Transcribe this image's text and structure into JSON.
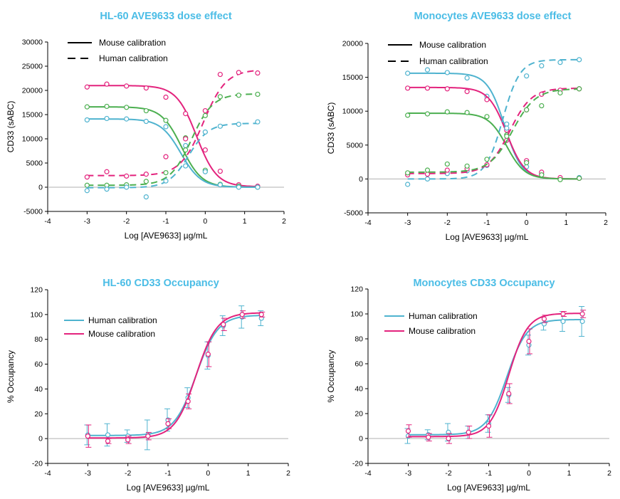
{
  "colors": {
    "title": "#4bbde6",
    "cyan": "#4fb3cf",
    "magenta": "#e3237d",
    "green": "#4caf50",
    "axis": "#000000"
  },
  "charts": [
    {
      "type": "line",
      "title": "HL-60 AVE9633 dose effect",
      "xlabel": "Log [AVE9633] µg/mL",
      "ylabel": "CD33 (sABC)",
      "xlim": [
        -4,
        2
      ],
      "ylim": [
        -5000,
        30000
      ],
      "xticks": [
        "-4",
        "-3",
        "-2",
        "-1",
        "0",
        "1",
        "2"
      ],
      "yticks": [
        "-5000",
        "0",
        "5000",
        "10000",
        "15000",
        "20000",
        "25000",
        "30000"
      ],
      "legend": [
        {
          "label": "Mouse calibration",
          "style": "solid"
        },
        {
          "label": "Human calibration",
          "style": "dashed"
        }
      ],
      "x": [
        -3,
        -2.5,
        -2,
        -1.5,
        -1,
        -0.5,
        0,
        0.38,
        0.85,
        1.33
      ],
      "series": [
        {
          "color": "magenta",
          "style": "solid",
          "points": [
            20700,
            21300,
            20900,
            20500,
            18600,
            15200,
            7700,
            3300,
            500,
            200
          ],
          "fit": {
            "bottom": 100,
            "top": 21000,
            "ec50": -0.22,
            "hill": 1.7
          }
        },
        {
          "color": "green",
          "style": "solid",
          "points": [
            16600,
            16700,
            16500,
            15800,
            13800,
            10200,
            3500,
            600,
            200,
            0
          ],
          "fit": {
            "bottom": 0,
            "top": 16600,
            "ec50": -0.6,
            "hill": 1.7
          }
        },
        {
          "color": "cyan",
          "style": "solid",
          "points": [
            13900,
            14200,
            14100,
            13600,
            12500,
            8600,
            3200,
            500,
            0,
            0
          ],
          "fit": {
            "bottom": 0,
            "top": 14100,
            "ec50": -0.62,
            "hill": 1.7
          }
        },
        {
          "color": "magenta",
          "style": "dashed",
          "points": [
            2100,
            3200,
            2300,
            2700,
            6300,
            10000,
            15800,
            23300,
            23700,
            23600
          ],
          "fit": {
            "bottom": 2400,
            "top": 24300,
            "ec50": -0.05,
            "hill": 1.5
          }
        },
        {
          "color": "green",
          "style": "dashed",
          "points": [
            400,
            400,
            500,
            1200,
            3000,
            7700,
            14800,
            18700,
            19000,
            19200
          ],
          "fit": {
            "bottom": 400,
            "top": 19300,
            "ec50": -0.35,
            "hill": 1.6
          }
        },
        {
          "color": "cyan",
          "style": "dashed",
          "points": [
            -700,
            -400,
            0,
            -2000,
            1300,
            4400,
            11400,
            12600,
            13000,
            13500
          ],
          "fit": {
            "bottom": -100,
            "top": 13200,
            "ec50": -0.42,
            "hill": 1.7
          }
        }
      ]
    },
    {
      "type": "line",
      "title": "Monocytes AVE9633 dose effect",
      "xlabel": "Log [AVE9633] µg/mL",
      "ylabel": "CD33 (sABC)",
      "xlim": [
        -4,
        2
      ],
      "ylim": [
        -5000,
        20000
      ],
      "xticks": [
        "-4",
        "-3",
        "-2",
        "-1",
        "0",
        "1",
        "2"
      ],
      "yticks": [
        "-5000",
        "0",
        "5000",
        "10000",
        "15000",
        "20000"
      ],
      "legend": [
        {
          "label": "Mouse calibration",
          "style": "solid"
        },
        {
          "label": "Human calibration",
          "style": "dashed"
        }
      ],
      "x": [
        -3,
        -2.5,
        -2,
        -1.5,
        -1,
        -0.5,
        0,
        0.38,
        0.85,
        1.33
      ],
      "series": [
        {
          "color": "cyan",
          "style": "solid",
          "points": [
            15600,
            16100,
            15700,
            14900,
            12200,
            8100,
            1800,
            700,
            100,
            200
          ],
          "fit": {
            "bottom": 0,
            "top": 15600,
            "ec50": -0.55,
            "hill": 2.0
          }
        },
        {
          "color": "magenta",
          "style": "solid",
          "points": [
            13400,
            13400,
            13300,
            12900,
            11700,
            7200,
            2700,
            1000,
            200,
            100
          ],
          "fit": {
            "bottom": 0,
            "top": 13500,
            "ec50": -0.5,
            "hill": 1.9
          }
        },
        {
          "color": "green",
          "style": "solid",
          "points": [
            9400,
            9600,
            9900,
            9800,
            9200,
            6500,
            2400,
            600,
            -100,
            100
          ],
          "fit": {
            "bottom": 0,
            "top": 9700,
            "ec50": -0.5,
            "hill": 1.9
          }
        },
        {
          "color": "cyan",
          "style": "dashed",
          "points": [
            -800,
            0,
            800,
            1200,
            2000,
            7500,
            15200,
            16700,
            17200,
            17600
          ],
          "fit": {
            "bottom": 0,
            "top": 17600,
            "ec50": -0.6,
            "hill": 2.0
          }
        },
        {
          "color": "magenta",
          "style": "dashed",
          "points": [
            600,
            700,
            1300,
            1500,
            2100,
            5700,
            10200,
            12500,
            13100,
            13300
          ],
          "fit": {
            "bottom": 800,
            "top": 13400,
            "ec50": -0.42,
            "hill": 1.6
          }
        },
        {
          "color": "green",
          "style": "dashed",
          "points": [
            900,
            1300,
            2200,
            1900,
            2900,
            6300,
            10200,
            10800,
            12700,
            13300
          ],
          "fit": {
            "bottom": 1000,
            "top": 13300,
            "ec50": -0.35,
            "hill": 1.5
          }
        }
      ]
    },
    {
      "type": "line",
      "title": "HL-60 CD33 Occupancy",
      "xlabel": "Log [AVE9633] µg/mL",
      "ylabel": "% Occupancy",
      "xlim": [
        -4,
        2
      ],
      "ylim": [
        -20,
        120
      ],
      "xticks": [
        "-4",
        "-3",
        "-2",
        "-1",
        "0",
        "1",
        "2"
      ],
      "yticks": [
        "-20",
        "0",
        "20",
        "40",
        "60",
        "80",
        "100",
        "120"
      ],
      "legend": [
        {
          "label": "Human calibration",
          "color": "cyan"
        },
        {
          "label": "Mouse calibration",
          "color": "magenta"
        }
      ],
      "x": [
        -3,
        -2.5,
        -2,
        -1.5,
        -1,
        -0.5,
        0,
        0.38,
        0.85,
        1.33
      ],
      "series": [
        {
          "color": "cyan",
          "style": "solid",
          "points": [
            3,
            3,
            2,
            3,
            15,
            33,
            67,
            91,
            98,
            97
          ],
          "errors": [
            8,
            9,
            5,
            12,
            9,
            8,
            11,
            8,
            9,
            6
          ],
          "fit": {
            "bottom": 2.5,
            "top": 99.5,
            "ec50": -0.3,
            "hill": 1.6
          }
        },
        {
          "color": "magenta",
          "style": "solid",
          "points": [
            2,
            -2,
            -1,
            2,
            12,
            30,
            68,
            92,
            100,
            100
          ],
          "errors": [
            9,
            2,
            3,
            3,
            4,
            6,
            10,
            5,
            3,
            2
          ],
          "fit": {
            "bottom": 0.5,
            "top": 101.5,
            "ec50": -0.3,
            "hill": 1.65
          }
        }
      ]
    },
    {
      "type": "line",
      "title": "Monocytes CD33 Occupancy",
      "xlabel": "Log [AVE9633] µg/mL",
      "ylabel": "% Occupancy",
      "xlim": [
        -4,
        2
      ],
      "ylim": [
        -20,
        120
      ],
      "xticks": [
        "-4",
        "-3",
        "-2",
        "-1",
        "0",
        "1",
        "2"
      ],
      "yticks": [
        "-20",
        "0",
        "20",
        "40",
        "60",
        "80",
        "100",
        "120"
      ],
      "legend": [
        {
          "label": "Human calibration",
          "color": "cyan"
        },
        {
          "label": "Mouse calibration",
          "color": "magenta"
        }
      ],
      "x": [
        -3,
        -2.5,
        -2,
        -1.5,
        -1,
        -0.5,
        0,
        0.38,
        0.85,
        1.33
      ],
      "series": [
        {
          "color": "cyan",
          "style": "solid",
          "points": [
            2,
            3,
            5,
            5,
            12,
            35,
            75,
            92,
            94,
            94
          ],
          "errors": [
            6,
            4,
            7,
            5,
            7,
            6,
            8,
            5,
            8,
            12
          ],
          "fit": {
            "bottom": 3,
            "top": 95.5,
            "ec50": -0.55,
            "hill": 1.75
          }
        },
        {
          "color": "magenta",
          "style": "solid",
          "points": [
            6,
            1,
            0,
            5,
            10,
            36,
            78,
            96,
            100,
            100
          ],
          "errors": [
            5,
            3,
            4,
            5,
            9,
            8,
            10,
            3,
            2,
            3
          ],
          "fit": {
            "bottom": 1.5,
            "top": 100.5,
            "ec50": -0.5,
            "hill": 1.85
          }
        }
      ]
    }
  ]
}
